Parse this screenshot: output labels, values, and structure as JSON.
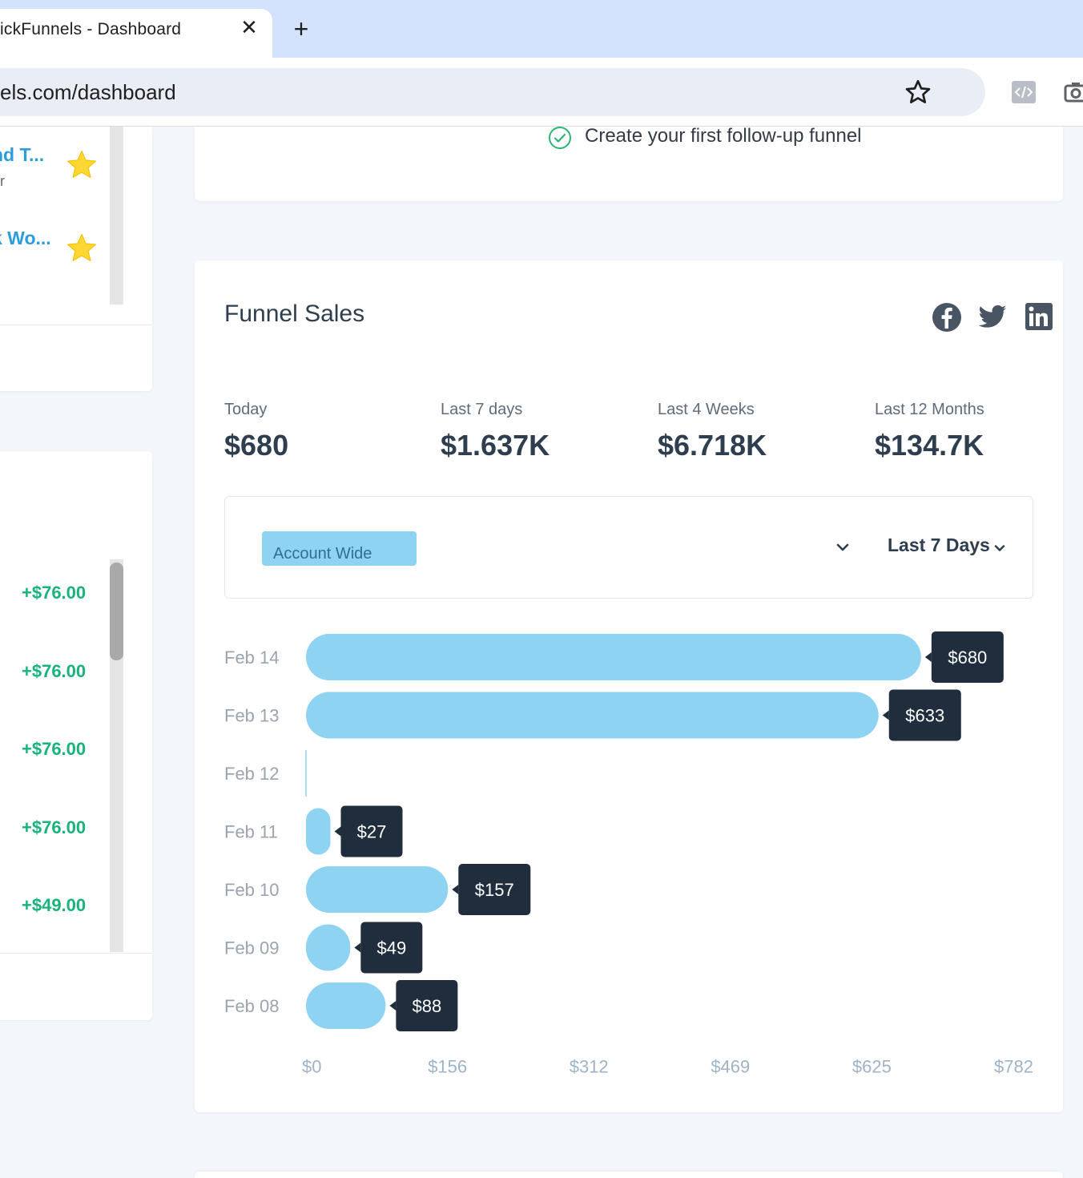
{
  "browser": {
    "tab_title": "ickFunnels - Dashboard",
    "close_glyph": "✕",
    "new_tab_glyph": "+",
    "url": "els.com/dashboard"
  },
  "sidebar": {
    "favorites": [
      {
        "title": "nd T...",
        "subtitle": "ar"
      },
      {
        "title": "k Wo...",
        "subtitle": ""
      }
    ],
    "amounts": [
      "+$76.00",
      "+$76.00",
      "+$76.00",
      "+$76.00",
      "+$49.00"
    ]
  },
  "checklist": {
    "item": "Create your first follow-up funnel"
  },
  "sales": {
    "title": "Funnel Sales",
    "share_icons": [
      "facebook-icon",
      "twitter-icon",
      "linkedin-icon"
    ],
    "stats": [
      {
        "label": "Today",
        "value": "$680"
      },
      {
        "label": "Last 7 days",
        "value": "$1.637K"
      },
      {
        "label": "Last 4 Weeks",
        "value": "$6.718K"
      },
      {
        "label": "Last 12 Months",
        "value": "$134.7K"
      }
    ],
    "filter": {
      "scope": "Account Wide",
      "range": "Last 7 Days"
    }
  },
  "colors": {
    "bar": "#8fd3f3",
    "tooltip": "#1f2d3d",
    "positive": "#17b37b",
    "link": "#2d9cdb",
    "star": "#fdd835"
  },
  "chart_data": {
    "type": "bar",
    "orientation": "horizontal",
    "categories": [
      "Feb 14",
      "Feb 13",
      "Feb 12",
      "Feb 11",
      "Feb 10",
      "Feb 09",
      "Feb 08"
    ],
    "values": [
      680,
      633,
      0,
      27,
      157,
      49,
      88
    ],
    "data_labels": [
      "$680",
      "$633",
      "",
      "$27",
      "$157",
      "$49",
      "$88"
    ],
    "x_ticks": [
      "$0",
      "$156",
      "$312",
      "$469",
      "$625",
      "$782"
    ],
    "xlim": [
      0,
      782
    ],
    "grid": false,
    "legend": "none"
  }
}
